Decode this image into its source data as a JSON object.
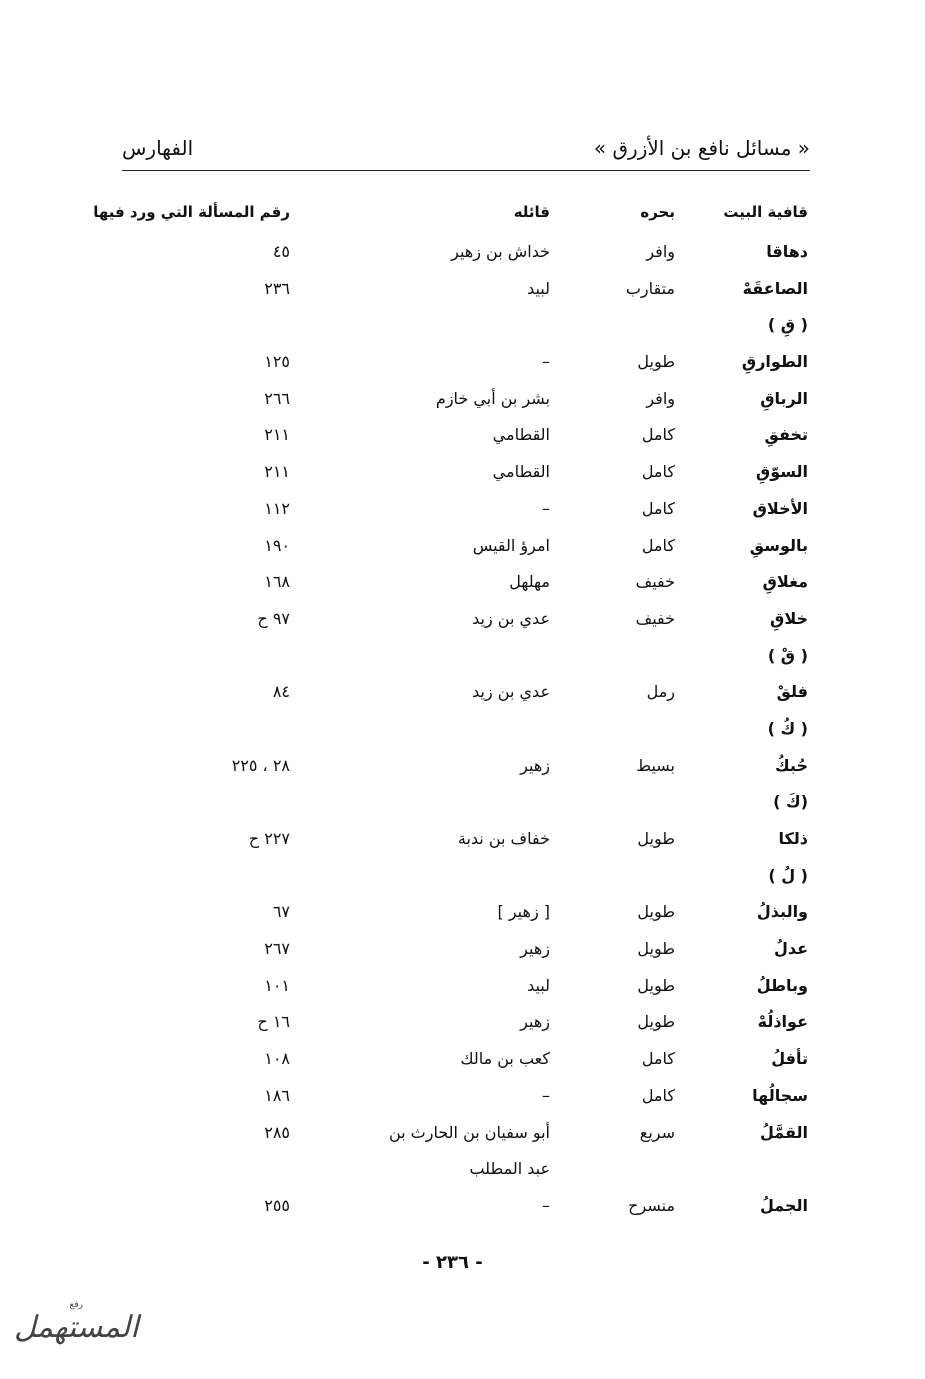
{
  "header": {
    "book_title": "« مسائل نافع بن الأزرق »",
    "section": "الفهارس"
  },
  "columns": [
    "قافية البيت",
    "بحره",
    "قائله",
    "رقم المسألة التي ورد فيها"
  ],
  "rows": [
    [
      "دهاقا",
      "وافر",
      "خداش بن زهير",
      "٤٥"
    ],
    [
      "الصاعقَهْ",
      "متقارب",
      "لبيد",
      "٢٣٦"
    ],
    [
      "( قِ )",
      "",
      "",
      ""
    ],
    [
      "الطوارقِ",
      "طويل",
      "–",
      "١٢٥"
    ],
    [
      "الرباقِ",
      "وافر",
      "بشر بن أبي خازم",
      "٢٦٦"
    ],
    [
      "تخفقِ",
      "كامل",
      "القطامي",
      "٢١١"
    ],
    [
      "السوّقِ",
      "كامل",
      "القطامي",
      "٢١١"
    ],
    [
      "الأخلاق",
      "كامل",
      "–",
      "١١٢"
    ],
    [
      "بالوسقِ",
      "كامل",
      "امرؤ القيس",
      "١٩٠"
    ],
    [
      "مغلاقِ",
      "خفيف",
      "مهلهل",
      "١٦٨"
    ],
    [
      "خلاقِ",
      "خفيف",
      "عدي بن زيد",
      "٩٧ ح"
    ],
    [
      "( قْ )",
      "",
      "",
      ""
    ],
    [
      "فلقْ",
      "رمل",
      "عدي بن زيد",
      "٨٤"
    ],
    [
      "( كُ )",
      "",
      "",
      ""
    ],
    [
      "حُبكُ",
      "بسيط",
      "زهير",
      "٢٨ ، ٢٢٥"
    ],
    [
      "(كَ )",
      "",
      "",
      ""
    ],
    [
      "ذلكا",
      "طويل",
      "خفاف بن ندبة",
      "٢٢٧ ح"
    ],
    [
      "( لُ )",
      "",
      "",
      ""
    ],
    [
      "والبذلُ",
      "طويل",
      "[ زهير ]",
      "٦٧"
    ],
    [
      "عدلُ",
      "طويل",
      "زهير",
      "٢٦٧"
    ],
    [
      "وباطلُ",
      "طويل",
      "لبيد",
      "١٠١"
    ],
    [
      "عواذلُهْ",
      "طويل",
      "زهير",
      "١٦ ح"
    ],
    [
      "تأفلُ",
      "كامل",
      "كعب بن مالك",
      "١٠٨"
    ],
    [
      "سجالُها",
      "كامل",
      "–",
      "١٨٦"
    ],
    [
      "القمَّلُ",
      "سريع",
      "أبو سفيان بن الحارث بن",
      "٢٨٥"
    ],
    [
      "",
      "",
      "عبد المطلب",
      ""
    ],
    [
      "الجملُ",
      "منسرح",
      "–",
      "٢٥٥"
    ]
  ],
  "page_number": "- ٢٣٦ -",
  "watermark": {
    "text": "المستهمل",
    "subtext": "رفع"
  }
}
